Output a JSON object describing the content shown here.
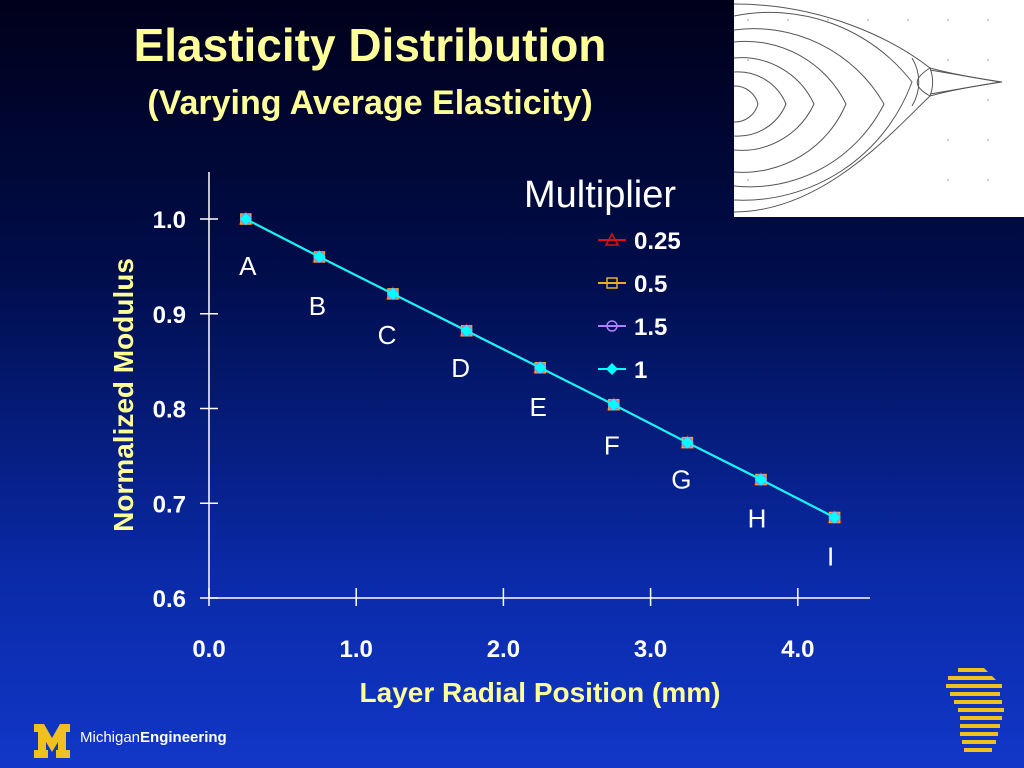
{
  "slide": {
    "title": "Elasticity Distribution",
    "subtitle": "(Varying Average Elasticity)"
  },
  "footer": {
    "brand_light": "Michigan",
    "brand_bold": "Engineering",
    "logo_icon": "block-m-logo-icon",
    "corner_icon": "state-striped-logo-icon"
  },
  "chart_data": {
    "type": "line",
    "title": "",
    "xlabel": "Layer Radial Position (mm)",
    "ylabel": "Normalized Modulus",
    "xlim": [
      0,
      4.5
    ],
    "ylim": [
      0.6,
      1.05
    ],
    "xticks": [
      0.0,
      1.0,
      2.0,
      3.0,
      4.0
    ],
    "xtick_labels": [
      "0.0",
      "1.0",
      "2.0",
      "3.0",
      "4.0"
    ],
    "yticks": [
      0.6,
      0.7,
      0.8,
      0.9,
      1.0
    ],
    "ytick_labels": [
      "0.6",
      "0.7",
      "0.8",
      "0.9",
      "1.0"
    ],
    "grid": false,
    "legend_title": "Multiplier",
    "legend_position": "top-right",
    "x": [
      0.25,
      0.75,
      1.25,
      1.75,
      2.25,
      2.75,
      3.25,
      3.75,
      4.25
    ],
    "point_labels": [
      "A",
      "B",
      "C",
      "D",
      "E",
      "F",
      "G",
      "H",
      "I"
    ],
    "series": [
      {
        "name": "0.25",
        "marker": "triangle-open",
        "color": "#dd1111",
        "values": [
          1.0,
          0.96,
          0.921,
          0.882,
          0.843,
          0.804,
          0.764,
          0.725,
          0.685
        ]
      },
      {
        "name": "0.5",
        "marker": "square-open",
        "color": "#e8b020",
        "values": [
          1.0,
          0.96,
          0.921,
          0.882,
          0.843,
          0.804,
          0.764,
          0.725,
          0.685
        ]
      },
      {
        "name": "1.5",
        "marker": "circle-open",
        "color": "#b080ff",
        "values": [
          1.0,
          0.96,
          0.921,
          0.882,
          0.843,
          0.804,
          0.764,
          0.725,
          0.685
        ]
      },
      {
        "name": "1",
        "marker": "diamond-filled",
        "color": "#00ffff",
        "values": [
          1.0,
          0.96,
          0.921,
          0.882,
          0.843,
          0.804,
          0.764,
          0.725,
          0.685
        ]
      }
    ]
  }
}
